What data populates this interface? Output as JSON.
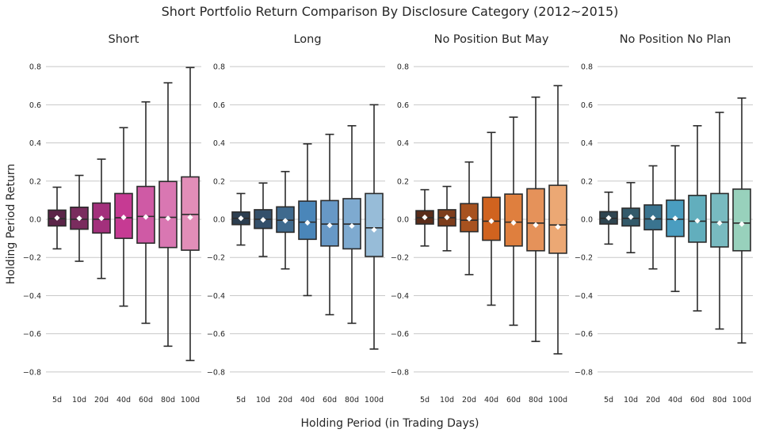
{
  "title": "Short Portfolio Return Comparison By Disclosure Category (2012~2015)",
  "xlabel": "Holding Period (in Trading Days)",
  "ylabel": "Holding Period Return",
  "chart_data": {
    "type": "box",
    "ylim": [
      -0.9,
      0.9
    ],
    "yticks": [
      -0.8,
      -0.6,
      -0.4,
      -0.2,
      0.0,
      0.2,
      0.4,
      0.6,
      0.8
    ],
    "ytick_labels": [
      "−0.8",
      "−0.6",
      "−0.4",
      "−0.2",
      "0.0",
      "0.2",
      "0.4",
      "0.6",
      "0.8"
    ],
    "grid": true,
    "categories": [
      "5d",
      "10d",
      "20d",
      "40d",
      "60d",
      "80d",
      "100d"
    ],
    "panels": [
      {
        "title": "Short",
        "colors": [
          "#5b2448",
          "#7a2c5e",
          "#a3307c",
          "#c63a93",
          "#cf5aa5",
          "#d977b2",
          "#e28eb8"
        ],
        "boxes": [
          {
            "whislo": -0.155,
            "q1": -0.035,
            "med": 0.003,
            "q3": 0.048,
            "whishi": 0.168,
            "mean": 0.007
          },
          {
            "whislo": -0.22,
            "q1": -0.052,
            "med": 0.0,
            "q3": 0.063,
            "whishi": 0.23,
            "mean": 0.005
          },
          {
            "whislo": -0.31,
            "q1": -0.072,
            "med": 0.0,
            "q3": 0.085,
            "whishi": 0.315,
            "mean": 0.005
          },
          {
            "whislo": -0.455,
            "q1": -0.1,
            "med": 0.008,
            "q3": 0.135,
            "whishi": 0.48,
            "mean": 0.01
          },
          {
            "whislo": -0.545,
            "q1": -0.125,
            "med": 0.015,
            "q3": 0.172,
            "whishi": 0.615,
            "mean": 0.012
          },
          {
            "whislo": -0.665,
            "q1": -0.148,
            "med": 0.01,
            "q3": 0.198,
            "whishi": 0.715,
            "mean": 0.005
          },
          {
            "whislo": -0.74,
            "q1": -0.162,
            "med": 0.025,
            "q3": 0.222,
            "whishi": 0.795,
            "mean": 0.01
          }
        ]
      },
      {
        "title": "Long",
        "colors": [
          "#2c3e50",
          "#34506b",
          "#3f6a8e",
          "#4a86b9",
          "#6798c6",
          "#7eaad0",
          "#97bcd8"
        ],
        "boxes": [
          {
            "whislo": -0.135,
            "q1": -0.028,
            "med": 0.005,
            "q3": 0.038,
            "whishi": 0.135,
            "mean": 0.005
          },
          {
            "whislo": -0.195,
            "q1": -0.048,
            "med": 0.0,
            "q3": 0.05,
            "whishi": 0.19,
            "mean": -0.003
          },
          {
            "whislo": -0.26,
            "q1": -0.068,
            "med": -0.005,
            "q3": 0.065,
            "whishi": 0.25,
            "mean": -0.008
          },
          {
            "whislo": -0.4,
            "q1": -0.105,
            "med": -0.015,
            "q3": 0.095,
            "whishi": 0.395,
            "mean": -0.018
          },
          {
            "whislo": -0.5,
            "q1": -0.14,
            "med": -0.025,
            "q3": 0.098,
            "whishi": 0.445,
            "mean": -0.032
          },
          {
            "whislo": -0.545,
            "q1": -0.155,
            "med": -0.025,
            "q3": 0.108,
            "whishi": 0.49,
            "mean": -0.035
          },
          {
            "whislo": -0.68,
            "q1": -0.195,
            "med": -0.045,
            "q3": 0.135,
            "whishi": 0.6,
            "mean": -0.055
          }
        ]
      },
      {
        "title": "No Position But May",
        "colors": [
          "#5a2c1a",
          "#7d3d1c",
          "#a8521f",
          "#d0631f",
          "#df7f3e",
          "#e5925a",
          "#eca874"
        ],
        "boxes": [
          {
            "whislo": -0.14,
            "q1": -0.025,
            "med": 0.008,
            "q3": 0.045,
            "whishi": 0.155,
            "mean": 0.01
          },
          {
            "whislo": -0.165,
            "q1": -0.035,
            "med": 0.008,
            "q3": 0.05,
            "whishi": 0.172,
            "mean": 0.01
          },
          {
            "whislo": -0.29,
            "q1": -0.065,
            "med": -0.005,
            "q3": 0.082,
            "whishi": 0.3,
            "mean": 0.003
          },
          {
            "whislo": -0.45,
            "q1": -0.11,
            "med": -0.01,
            "q3": 0.115,
            "whishi": 0.455,
            "mean": -0.01
          },
          {
            "whislo": -0.555,
            "q1": -0.14,
            "med": -0.015,
            "q3": 0.132,
            "whishi": 0.535,
            "mean": -0.018
          },
          {
            "whislo": -0.64,
            "q1": -0.165,
            "med": -0.02,
            "q3": 0.16,
            "whishi": 0.64,
            "mean": -0.03
          },
          {
            "whislo": -0.705,
            "q1": -0.178,
            "med": -0.03,
            "q3": 0.178,
            "whishi": 0.7,
            "mean": -0.04
          }
        ]
      },
      {
        "title": "No Position No Plan",
        "colors": [
          "#2f4550",
          "#335a6a",
          "#3a7490",
          "#4a9dc0",
          "#62aebd",
          "#78bac0",
          "#98d1bc"
        ],
        "boxes": [
          {
            "whislo": -0.13,
            "q1": -0.025,
            "med": 0.005,
            "q3": 0.04,
            "whishi": 0.142,
            "mean": 0.007
          },
          {
            "whislo": -0.175,
            "q1": -0.035,
            "med": 0.005,
            "q3": 0.058,
            "whishi": 0.192,
            "mean": 0.012
          },
          {
            "whislo": -0.26,
            "q1": -0.055,
            "med": 0.002,
            "q3": 0.075,
            "whishi": 0.28,
            "mean": 0.008
          },
          {
            "whislo": -0.378,
            "q1": -0.09,
            "med": 0.0,
            "q3": 0.1,
            "whishi": 0.385,
            "mean": 0.005
          },
          {
            "whislo": -0.48,
            "q1": -0.12,
            "med": -0.01,
            "q3": 0.125,
            "whishi": 0.49,
            "mean": -0.008
          },
          {
            "whislo": -0.575,
            "q1": -0.145,
            "med": -0.015,
            "q3": 0.135,
            "whishi": 0.56,
            "mean": -0.02
          },
          {
            "whislo": -0.648,
            "q1": -0.165,
            "med": -0.02,
            "q3": 0.158,
            "whishi": 0.635,
            "mean": -0.025
          }
        ]
      }
    ]
  }
}
